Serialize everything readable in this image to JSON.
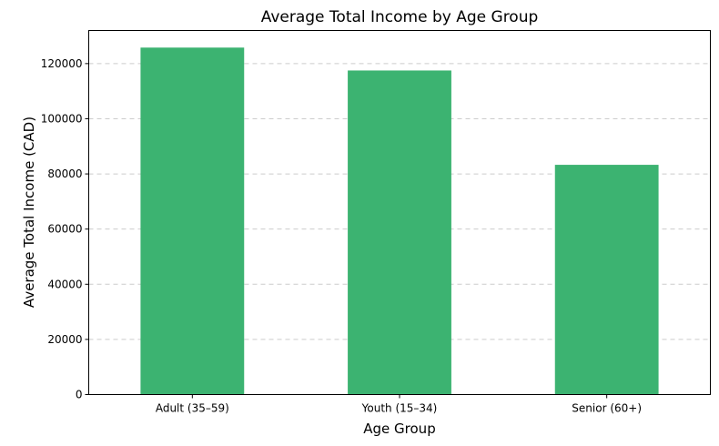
{
  "chart_data": {
    "type": "bar",
    "title": "Average Total Income by Age Group",
    "xlabel": "Age Group",
    "ylabel": "Average Total Income (CAD)",
    "categories": [
      "Adult (35–59)",
      "Youth (15–34)",
      "Senior (60+)"
    ],
    "values": [
      125800,
      117500,
      83300
    ],
    "ylim": [
      0,
      132000
    ],
    "yticks": [
      0,
      20000,
      40000,
      60000,
      80000,
      100000,
      120000
    ],
    "ytick_labels": [
      "0",
      "20000",
      "40000",
      "60000",
      "80000",
      "100000",
      "120000"
    ],
    "grid": "y-dashed",
    "bar_color": "#3cb371"
  }
}
